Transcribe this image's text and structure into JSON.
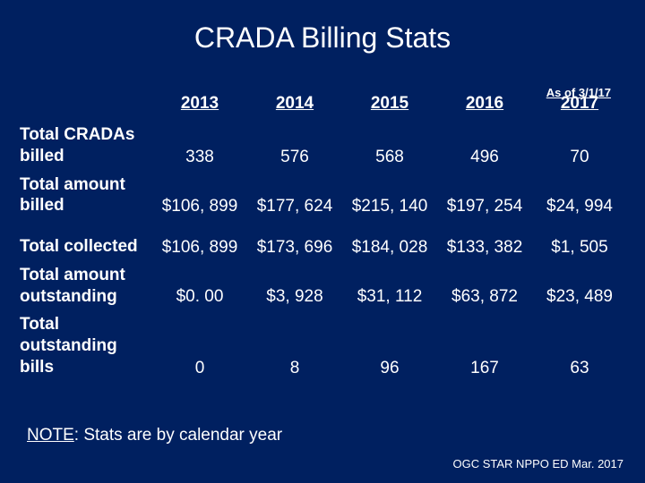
{
  "title": "CRADA Billing Stats",
  "asof_label": "As of 3/1/17",
  "note_prefix": "NOTE",
  "note_rest": ": Stats are by calendar year",
  "footer": "OGC STAR NPPO ED Mar. 2017",
  "columns": [
    "2013",
    "2014",
    "2015",
    "2016",
    "2017"
  ],
  "rows": [
    {
      "label": "Total CRADAs billed",
      "cells": [
        "338",
        "576",
        "568",
        "496",
        "70"
      ]
    },
    {
      "label": "Total amount billed",
      "cells": [
        "$106, 899",
        "$177, 624",
        "$215, 140",
        "$197, 254",
        "$24, 994"
      ]
    },
    {
      "__gap": true
    },
    {
      "label": "Total collected",
      "cells": [
        "$106, 899",
        "$173, 696",
        "$184, 028",
        "$133, 382",
        "$1, 505"
      ]
    },
    {
      "label": "Total amount outstanding",
      "cells": [
        "$0. 00",
        "$3, 928",
        "$31, 112",
        "$63, 872",
        "$23, 489"
      ]
    },
    {
      "label": "Total outstanding bills",
      "cells": [
        "0",
        "8",
        "96",
        "167",
        "63"
      ]
    }
  ],
  "colors": {
    "background": "#002060",
    "text": "#ffffff"
  },
  "fontsizes": {
    "title": 32,
    "body": 19,
    "asof": 13,
    "footer": 13
  }
}
